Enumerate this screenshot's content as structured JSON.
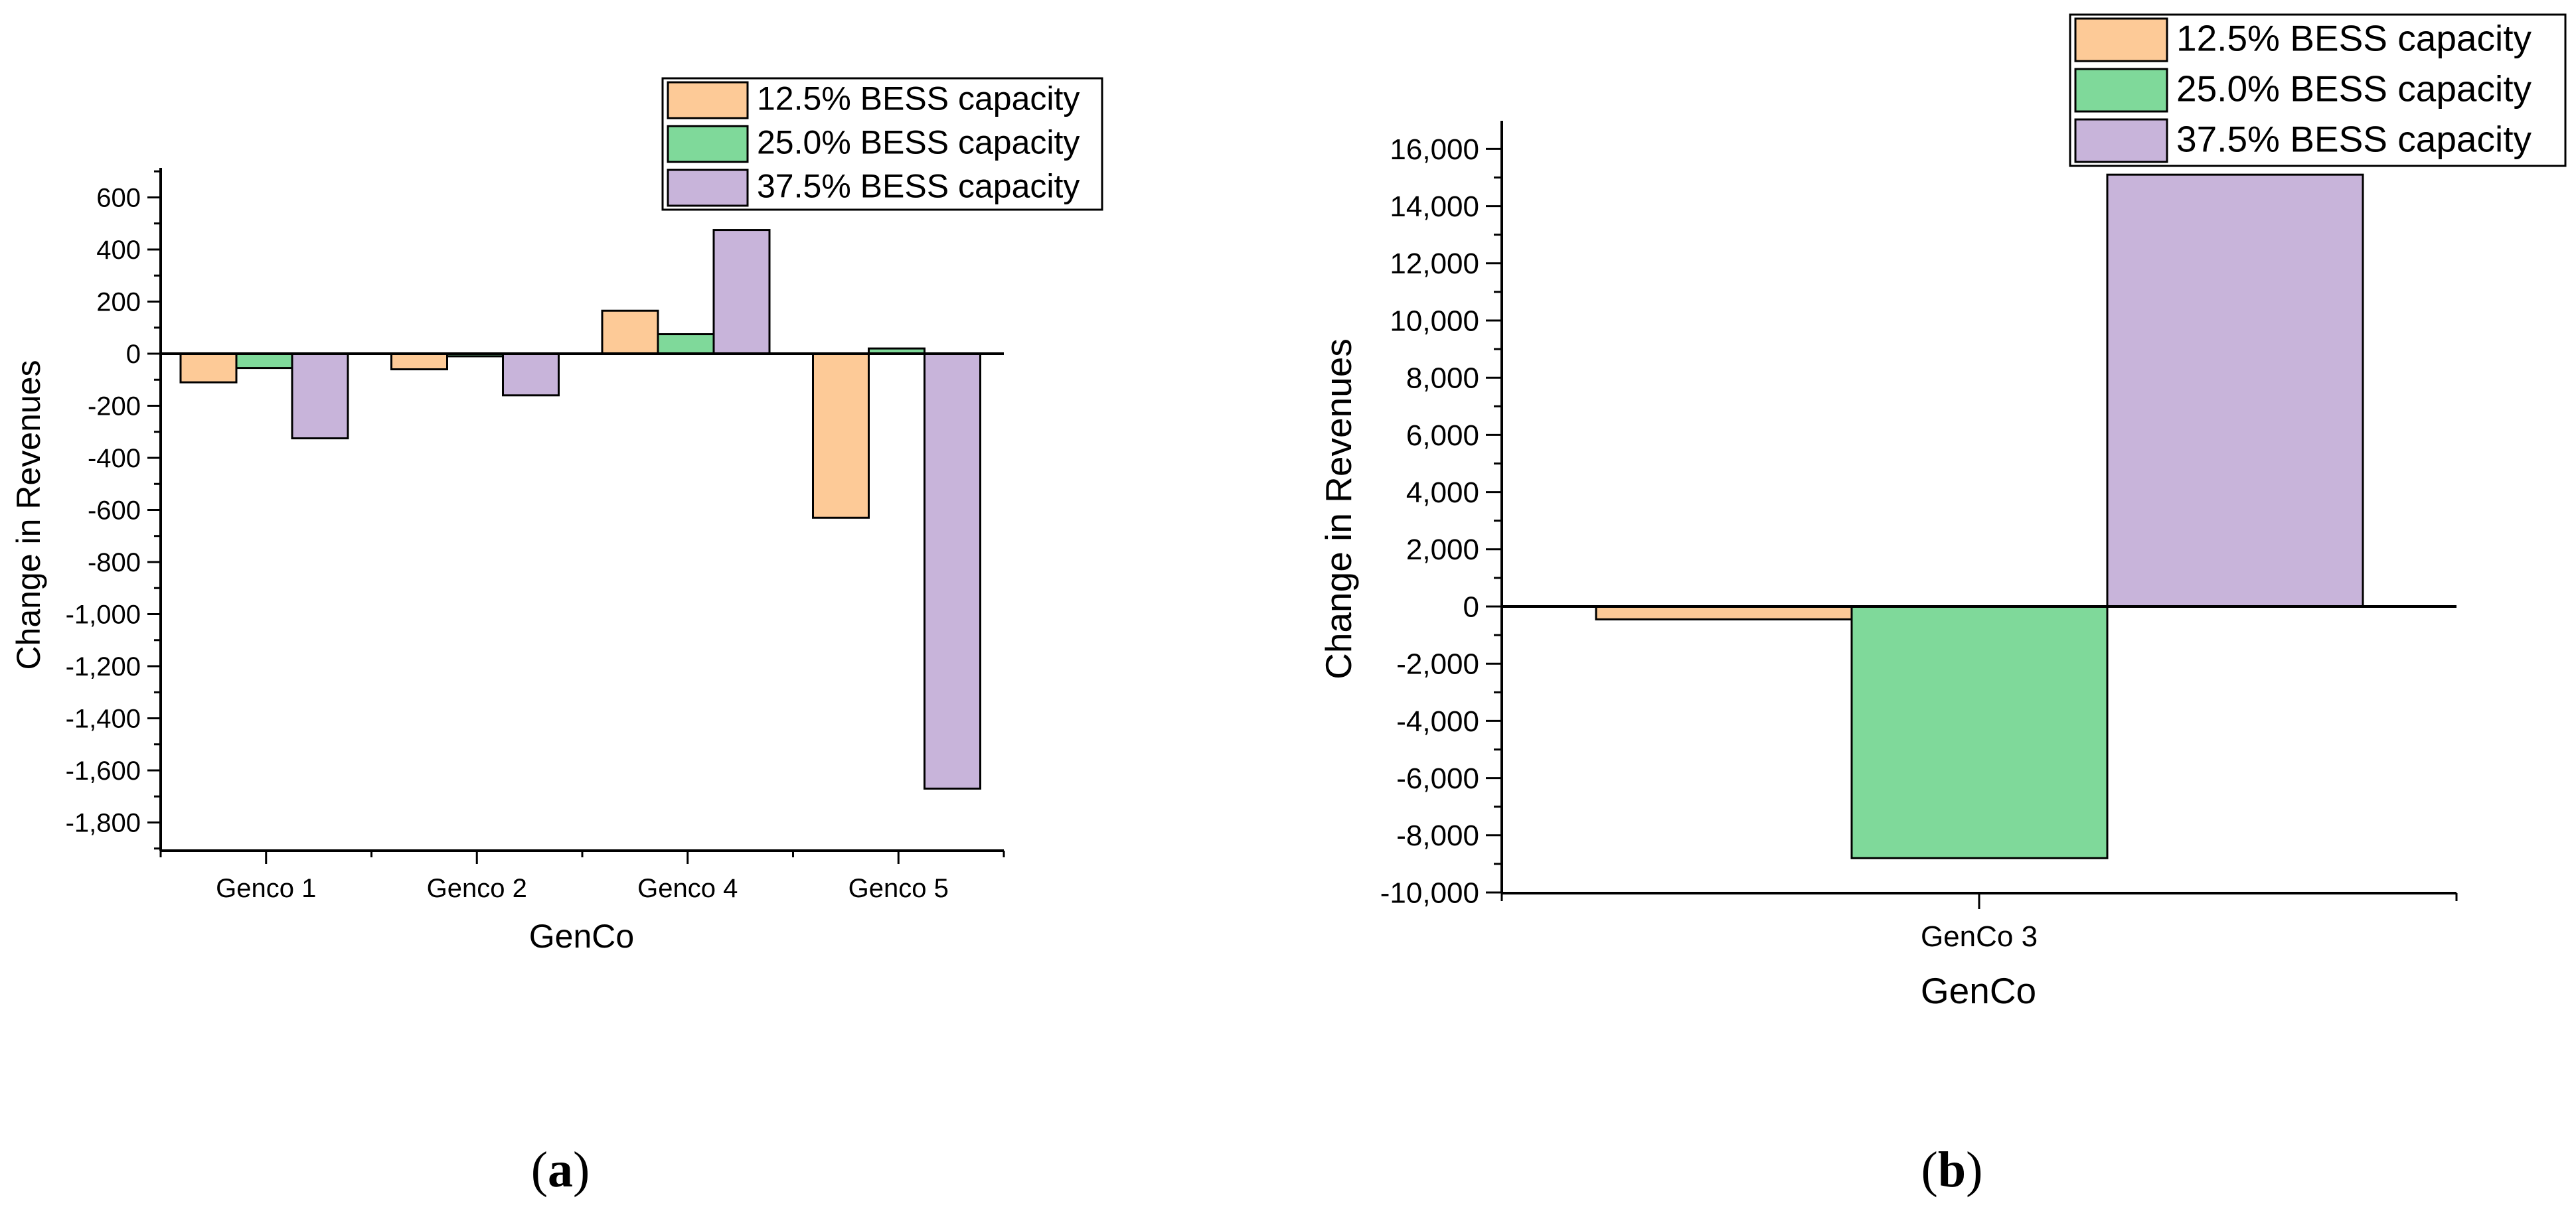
{
  "chart_data": [
    {
      "type": "bar",
      "panel_label": "a",
      "title": "",
      "xlabel": "GenCo",
      "ylabel": "Change in Revenues",
      "categories": [
        "Genco 1",
        "Genco 2",
        "Genco 4",
        "Genco 5"
      ],
      "series": [
        {
          "name": "12.5% BESS capacity",
          "color": "#FDCA97",
          "values": [
            -110,
            -60,
            165,
            -630
          ]
        },
        {
          "name": "25.0% BESS capacity",
          "color": "#7FD99A",
          "values": [
            -55,
            -10,
            75,
            20
          ]
        },
        {
          "name": "37.5% BESS capacity",
          "color": "#C8B4DA",
          "values": [
            -325,
            -160,
            475,
            -1670
          ]
        }
      ],
      "ylim": [
        -1900,
        700
      ],
      "yticks": [
        600,
        400,
        200,
        0,
        -200,
        -400,
        -600,
        -800,
        -1000,
        -1200,
        -1400,
        -1600,
        -1800
      ],
      "ytick_labels": [
        "600",
        "400",
        "200",
        "0",
        "-200",
        "-400",
        "-600",
        "-800",
        "-1,000",
        "-1,200",
        "-1,400",
        "-1,600",
        "-1,800"
      ],
      "legend_position": "top-right"
    },
    {
      "type": "bar",
      "panel_label": "b",
      "title": "",
      "xlabel": "GenCo",
      "ylabel": "Change in Revenues",
      "categories": [
        "GenCo 3"
      ],
      "series": [
        {
          "name": "12.5% BESS capacity",
          "color": "#FDCA97",
          "values": [
            -450
          ]
        },
        {
          "name": "25.0% BESS capacity",
          "color": "#7FD99A",
          "values": [
            -8800
          ]
        },
        {
          "name": "37.5% BESS capacity",
          "color": "#C8B4DA",
          "values": [
            15100
          ]
        }
      ],
      "ylim": [
        -10000,
        17000
      ],
      "yticks": [
        16000,
        14000,
        12000,
        10000,
        8000,
        6000,
        4000,
        2000,
        0,
        -2000,
        -4000,
        -6000,
        -8000,
        -10000
      ],
      "ytick_labels": [
        "16,000",
        "14,000",
        "12,000",
        "10,000",
        "8,000",
        "6,000",
        "4,000",
        "2,000",
        "0",
        "-2,000",
        "-4,000",
        "-6,000",
        "-8,000",
        "-10,000"
      ],
      "legend_position": "top-right"
    }
  ]
}
